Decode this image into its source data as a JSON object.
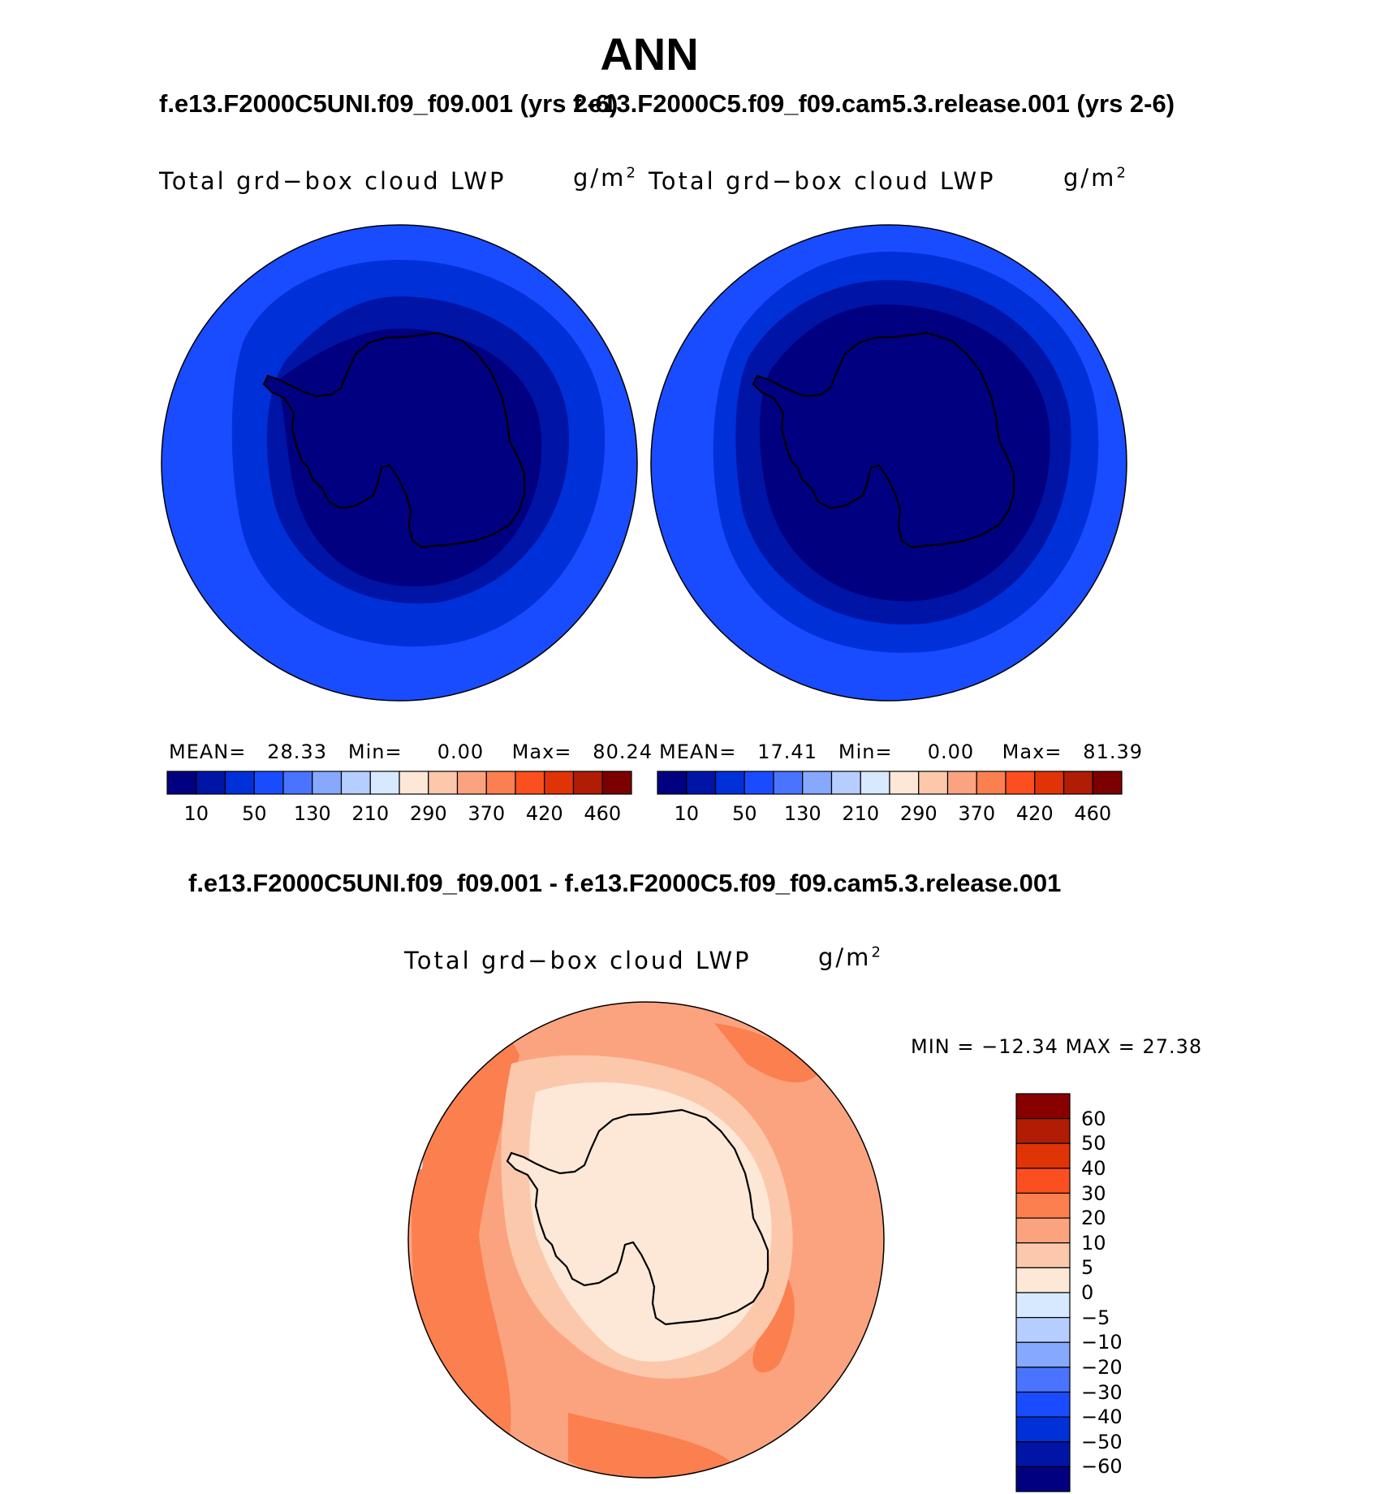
{
  "title": "ANN",
  "panels": [
    {
      "case_title": "f.e13.F2000C5UNI.f09_f09.001 (yrs 2-6)",
      "field_label": "Total grd−box cloud LWP",
      "units_base": "g/m",
      "units_exp": "2",
      "stats": {
        "mean_label": "MEAN=",
        "mean": "28.33",
        "min_label": "Min=",
        "min": "0.00",
        "max_label": "Max=",
        "max": "80.24"
      }
    },
    {
      "case_title": "f.e13.F2000C5.f09_f09.cam5.3.release.001 (yrs 2-6)",
      "field_label": "Total grd−box cloud LWP",
      "units_base": "g/m",
      "units_exp": "2",
      "stats": {
        "mean_label": "MEAN=",
        "mean": "17.41",
        "min_label": "Min=",
        "min": "0.00",
        "max_label": "Max=",
        "max": "81.39"
      }
    }
  ],
  "colorbar_top": {
    "colors": [
      "#000080",
      "#0014a6",
      "#0030d8",
      "#1a4cff",
      "#4a74ff",
      "#86a8ff",
      "#b6cdff",
      "#d7e9ff",
      "#fde8d7",
      "#fcc8ac",
      "#fba37f",
      "#fb7f4f",
      "#fc4f1f",
      "#e03406",
      "#b01c04",
      "#7d0000"
    ],
    "labels": [
      "10",
      "50",
      "130",
      "210",
      "290",
      "370",
      "420",
      "460"
    ]
  },
  "diff": {
    "title": "f.e13.F2000C5UNI.f09_f09.001 - f.e13.F2000C5.f09_f09.cam5.3.release.001",
    "field_label": "Total grd−box cloud LWP",
    "units_base": "g/m",
    "units_exp": "2",
    "minmax": "MIN = −12.34 MAX =  27.38"
  },
  "colorbar_diff": {
    "colors": [
      "#880000",
      "#b01c04",
      "#e03406",
      "#fc4f1f",
      "#fb7f4f",
      "#fba37f",
      "#fcc8ac",
      "#fde8d7",
      "#d7e9ff",
      "#b6cdff",
      "#86a8ff",
      "#4a74ff",
      "#1a4cff",
      "#0030d8",
      "#0014a6",
      "#000080"
    ],
    "labels": [
      "60",
      "50",
      "40",
      "30",
      "20",
      "10",
      "5",
      "0",
      "−5",
      "−10",
      "−20",
      "−30",
      "−40",
      "−50",
      "−60"
    ]
  },
  "map_colors": {
    "c1": "#1a4cff",
    "c2": "#0030d8",
    "c3": "#0014a6",
    "c4": "#000080",
    "d1": "#fba37f",
    "d2": "#fb7f4f",
    "d3": "#fcc8ac",
    "d4": "#fde8d7",
    "d5": "#d7e9ff"
  }
}
